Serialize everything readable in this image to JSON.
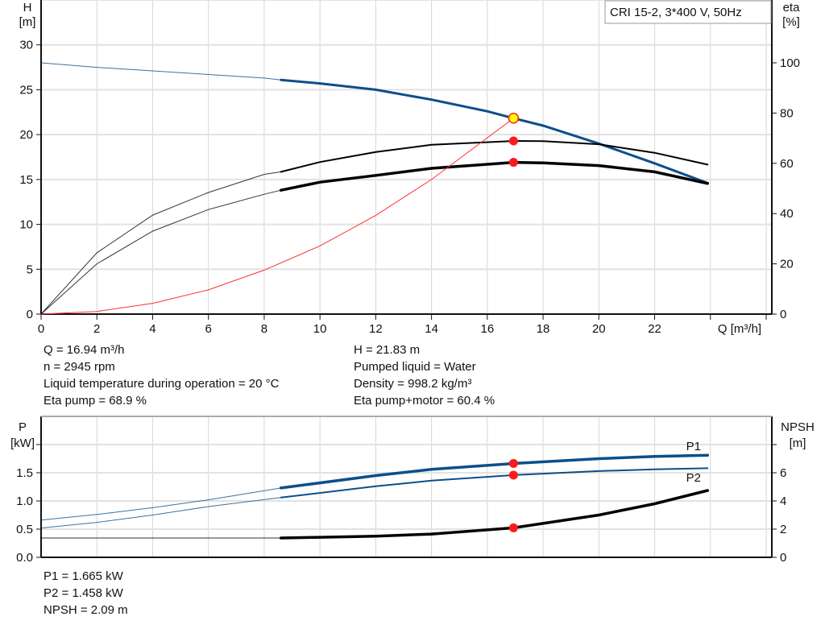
{
  "chart_data": [
    {
      "type": "line",
      "title": "CRI 15-2, 3*400 V, 50Hz",
      "xlabel": "Q [m³/h]",
      "ylabel": "H\n[m]",
      "ylabel_left": [
        "H",
        "[m]"
      ],
      "ylabel_right": [
        "eta",
        "[%]"
      ],
      "xlim": [
        0,
        26
      ],
      "ylim_left": [
        0,
        35
      ],
      "ylim_right": [
        0,
        125
      ],
      "x_ticks": [
        "0",
        "2",
        "4",
        "6",
        "8",
        "10",
        "12",
        "14",
        "16",
        "18",
        "20",
        "22"
      ],
      "y_ticks_left": [
        "0",
        "5",
        "10",
        "15",
        "20",
        "25",
        "30"
      ],
      "y_ticks_right": [
        "0",
        "20",
        "40",
        "60",
        "80",
        "100"
      ],
      "grid": true,
      "series": [
        {
          "key": "H",
          "axis": "left",
          "color": "#0b4f8a",
          "x": [
            0,
            2,
            4,
            6,
            8,
            8.6,
            10,
            12,
            14,
            16,
            16.94,
            18,
            20,
            22,
            23.9
          ],
          "y": [
            28,
            27.5,
            27.1,
            26.7,
            26.3,
            26.1,
            25.7,
            25.0,
            23.9,
            22.6,
            21.83,
            21.0,
            19.0,
            16.8,
            14.6
          ]
        },
        {
          "key": "eta_pump",
          "axis": "right",
          "color": "#000000",
          "x": [
            0,
            2,
            4,
            6,
            8,
            8.6,
            10,
            12,
            14,
            16.94,
            18,
            20,
            22,
            23.9
          ],
          "y": [
            0,
            24.4,
            39.4,
            48.4,
            55.6,
            56.6,
            60.5,
            64.5,
            67.4,
            68.9,
            68.8,
            67.6,
            64.2,
            59.5
          ]
        },
        {
          "key": "eta_pump_motor",
          "axis": "right",
          "color": "#000000",
          "x": [
            0,
            2,
            4,
            6,
            8,
            8.6,
            10,
            12,
            14,
            16.94,
            18,
            20,
            22,
            23.9
          ],
          "y": [
            0,
            20,
            33,
            41.6,
            47.7,
            49.3,
            52.5,
            55.2,
            58,
            60.4,
            60.2,
            59.1,
            56.6,
            52
          ]
        },
        {
          "key": "system",
          "axis": "left",
          "color": "#ff3030",
          "x": [
            0,
            2,
            4,
            6,
            8,
            10,
            12,
            14,
            16.94
          ],
          "y": [
            0,
            0.3,
            1.2,
            2.7,
            4.9,
            7.6,
            11.0,
            15.0,
            21.83
          ]
        }
      ],
      "duty_point": {
        "q": 16.94,
        "h": 21.83,
        "eta_pump": 68.9,
        "eta_pump_motor": 60.4
      },
      "operating_range_start": 8.6
    },
    {
      "type": "line",
      "ylabel_left": [
        "P",
        "[kW]"
      ],
      "ylabel_right": [
        "NPSH",
        "[m]"
      ],
      "xlim": [
        0,
        26
      ],
      "ylim_left": [
        0,
        2.5
      ],
      "ylim_right": [
        0,
        10
      ],
      "y_ticks_left": [
        "0.0",
        "0.5",
        "1.0",
        "1.5"
      ],
      "y_ticks_right": [
        "0",
        "2",
        "4",
        "6"
      ],
      "grid": true,
      "series": [
        {
          "name": "P1",
          "key": "P1",
          "axis": "left",
          "color": "#0b4f8a",
          "x": [
            0,
            2,
            4,
            6,
            8.6,
            12,
            14,
            16.94,
            20,
            22,
            23.9
          ],
          "y": [
            0.66,
            0.76,
            0.88,
            1.02,
            1.23,
            1.45,
            1.56,
            1.665,
            1.75,
            1.79,
            1.81
          ]
        },
        {
          "name": "P2",
          "key": "P2",
          "axis": "left",
          "color": "#0b4f8a",
          "x": [
            0,
            2,
            4,
            6,
            8.6,
            12,
            14,
            16.94,
            20,
            22,
            23.9
          ],
          "y": [
            0.52,
            0.62,
            0.75,
            0.9,
            1.06,
            1.26,
            1.36,
            1.458,
            1.53,
            1.56,
            1.58
          ]
        },
        {
          "key": "NPSH",
          "axis": "right",
          "color": "#000000",
          "x": [
            0,
            4,
            8.6,
            10,
            12,
            14,
            16.94,
            20,
            22,
            23.9
          ],
          "y": [
            1.37,
            1.37,
            1.37,
            1.42,
            1.5,
            1.65,
            2.09,
            3.0,
            3.8,
            4.74
          ]
        }
      ],
      "duty_point": {
        "q": 16.94,
        "p1": 1.665,
        "p2": 1.458,
        "npsh": 2.09
      }
    }
  ],
  "info_top": {
    "left": [
      "Q = 16.94 m³/h",
      "n = 2945 rpm",
      "Liquid temperature during operation = 20 °C",
      "Eta pump = 68.9 %"
    ],
    "right": [
      "H = 21.83 m",
      "Pumped liquid = Water",
      "Density = 998.2 kg/m³",
      "Eta pump+motor = 60.4 %"
    ]
  },
  "info_bottom": [
    "P1 = 1.665 kW",
    "P2 = 1.458 kW",
    "NPSH = 2.09 m"
  ]
}
